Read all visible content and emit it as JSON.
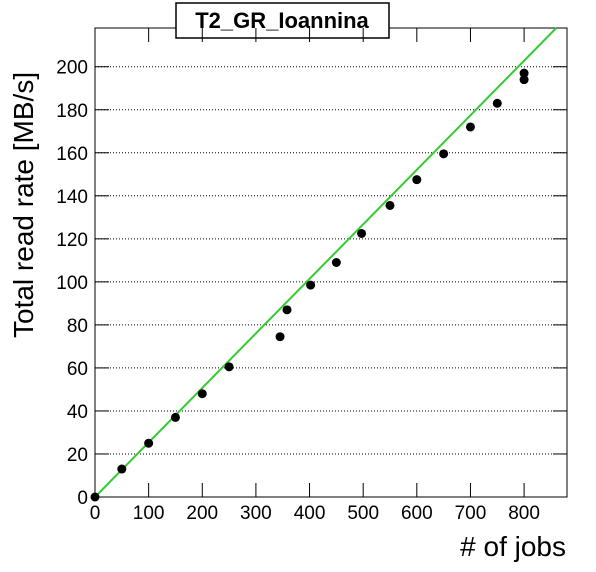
{
  "chart_data": {
    "type": "scatter",
    "title": "T2_GR_Ioannina",
    "xlabel": "# of jobs",
    "ylabel": "Total read rate [MB/s]",
    "xlim": [
      0,
      880
    ],
    "ylim": [
      0,
      218
    ],
    "xticks": [
      0,
      100,
      200,
      300,
      400,
      500,
      600,
      700,
      800
    ],
    "yticks": [
      0,
      20,
      40,
      60,
      80,
      100,
      120,
      140,
      160,
      180,
      200
    ],
    "grid": true,
    "series": [
      {
        "type": "scatter",
        "color": "#000000",
        "x": [
          0,
          50,
          100,
          150,
          200,
          250,
          345,
          358,
          402,
          450,
          497,
          550,
          600,
          650,
          700,
          750,
          800,
          800
        ],
        "values": [
          0,
          13,
          25,
          37,
          48,
          60.5,
          74.5,
          87,
          98.5,
          109,
          122.5,
          135.5,
          147.5,
          159.5,
          172,
          183,
          197,
          194
        ]
      },
      {
        "type": "line",
        "color": "#33cc33",
        "x": [
          0,
          860
        ],
        "values": [
          0,
          218
        ]
      }
    ]
  }
}
